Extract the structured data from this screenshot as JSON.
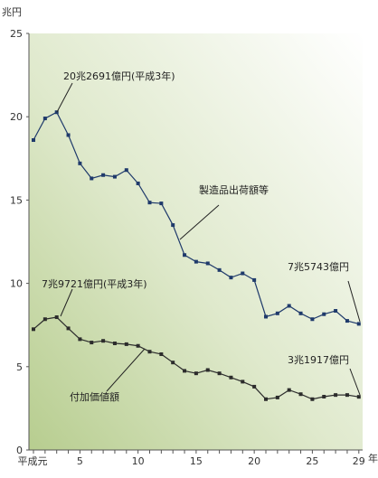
{
  "chart_data": {
    "type": "line",
    "y_unit": "兆円",
    "x_unit": "年",
    "ylim": [
      0,
      25
    ],
    "y_ticks": [
      "0",
      "5",
      "10",
      "15",
      "20",
      "25"
    ],
    "x_first_label": "平成元",
    "x_ticks": [
      "5",
      "10",
      "15",
      "20",
      "25",
      "29"
    ],
    "x": [
      1,
      2,
      3,
      4,
      5,
      6,
      7,
      8,
      9,
      10,
      11,
      12,
      13,
      14,
      15,
      16,
      17,
      18,
      19,
      20,
      21,
      22,
      23,
      24,
      25,
      26,
      27,
      28,
      29
    ],
    "grid": false,
    "series": [
      {
        "name": "製造品出荷額等",
        "color": "#1f3a6b",
        "values": [
          18.6,
          19.9,
          20.27,
          18.9,
          17.2,
          16.3,
          16.5,
          16.4,
          16.8,
          16.0,
          14.85,
          14.8,
          13.5,
          11.7,
          11.3,
          11.2,
          10.8,
          10.35,
          10.6,
          10.2,
          8.0,
          8.2,
          8.65,
          8.2,
          7.85,
          8.15,
          8.35,
          7.75,
          7.57
        ]
      },
      {
        "name": "付加価値額",
        "color": "#2c2c2c",
        "values": [
          7.25,
          7.85,
          7.97,
          7.3,
          6.65,
          6.45,
          6.55,
          6.4,
          6.35,
          6.25,
          5.9,
          5.75,
          5.25,
          4.75,
          4.6,
          4.8,
          4.6,
          4.35,
          4.1,
          3.8,
          3.05,
          3.15,
          3.6,
          3.35,
          3.05,
          3.2,
          3.3,
          3.3,
          3.19
        ]
      }
    ],
    "annotations": {
      "manuf_peak": "20兆2691億円(平成3年)",
      "manuf_name": "製造品出荷額等",
      "manuf_last": "7兆5743億円",
      "added_peak": "7兆9721億円(平成3年)",
      "added_name": "付加価値額",
      "added_last": "3兆1917億円"
    }
  }
}
